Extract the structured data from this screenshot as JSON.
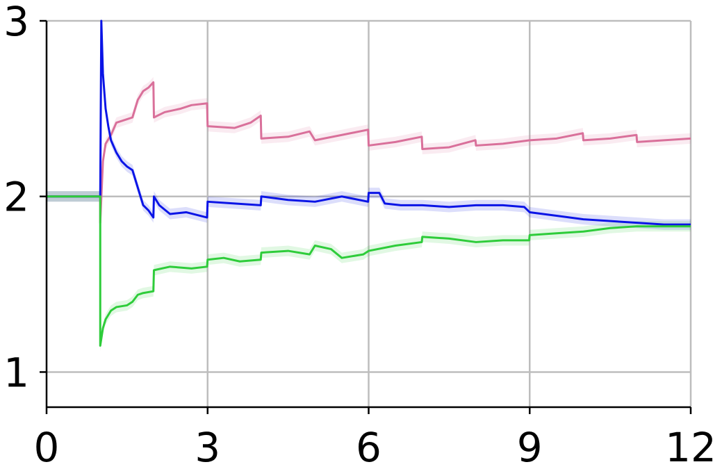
{
  "chart_data": {
    "type": "line",
    "title": "",
    "xlabel": "",
    "ylabel": "",
    "xlim": [
      0,
      12
    ],
    "ylim": [
      0.8,
      3.0
    ],
    "xticks": [
      0,
      3,
      6,
      9,
      12
    ],
    "yticks": [
      1,
      2,
      3
    ],
    "xtick_labels": [
      "0",
      "3",
      "6",
      "9",
      "12"
    ],
    "ytick_labels": [
      "1",
      "2",
      "3"
    ],
    "grid": true,
    "legend": "none",
    "series": [
      {
        "color": "#d9709a",
        "band_halfwidth": 0.03,
        "points": [
          [
            0,
            2.0
          ],
          [
            1.0,
            2.0
          ],
          [
            1.0,
            1.85
          ],
          [
            1.05,
            2.2
          ],
          [
            1.1,
            2.3
          ],
          [
            1.2,
            2.35
          ],
          [
            1.3,
            2.42
          ],
          [
            1.5,
            2.44
          ],
          [
            1.6,
            2.45
          ],
          [
            1.65,
            2.5
          ],
          [
            1.7,
            2.55
          ],
          [
            1.8,
            2.6
          ],
          [
            1.9,
            2.62
          ],
          [
            1.99,
            2.65
          ],
          [
            2.0,
            2.45
          ],
          [
            2.2,
            2.48
          ],
          [
            2.5,
            2.5
          ],
          [
            2.7,
            2.52
          ],
          [
            2.99,
            2.53
          ],
          [
            3.0,
            2.4
          ],
          [
            3.5,
            2.39
          ],
          [
            3.8,
            2.42
          ],
          [
            3.99,
            2.46
          ],
          [
            4.0,
            2.33
          ],
          [
            4.5,
            2.34
          ],
          [
            4.9,
            2.37
          ],
          [
            5.0,
            2.32
          ],
          [
            5.5,
            2.35
          ],
          [
            5.99,
            2.38
          ],
          [
            6.0,
            2.29
          ],
          [
            6.5,
            2.31
          ],
          [
            6.99,
            2.34
          ],
          [
            7.0,
            2.27
          ],
          [
            7.5,
            2.28
          ],
          [
            7.99,
            2.32
          ],
          [
            8.0,
            2.29
          ],
          [
            8.5,
            2.3
          ],
          [
            9.0,
            2.32
          ],
          [
            9.5,
            2.33
          ],
          [
            9.99,
            2.36
          ],
          [
            10.0,
            2.32
          ],
          [
            10.5,
            2.33
          ],
          [
            10.99,
            2.35
          ],
          [
            11.0,
            2.31
          ],
          [
            11.5,
            2.32
          ],
          [
            12.0,
            2.33
          ]
        ]
      },
      {
        "color": "#0a14e6",
        "band_halfwidth": 0.03,
        "points": [
          [
            0,
            2.0
          ],
          [
            1.0,
            2.0
          ],
          [
            1.02,
            3.0
          ],
          [
            1.05,
            2.7
          ],
          [
            1.1,
            2.5
          ],
          [
            1.15,
            2.4
          ],
          [
            1.2,
            2.32
          ],
          [
            1.3,
            2.25
          ],
          [
            1.4,
            2.2
          ],
          [
            1.5,
            2.17
          ],
          [
            1.6,
            2.15
          ],
          [
            1.7,
            2.05
          ],
          [
            1.8,
            1.95
          ],
          [
            1.9,
            1.92
          ],
          [
            1.99,
            1.88
          ],
          [
            2.0,
            2.0
          ],
          [
            2.1,
            1.95
          ],
          [
            2.3,
            1.9
          ],
          [
            2.6,
            1.91
          ],
          [
            2.99,
            1.88
          ],
          [
            3.0,
            1.97
          ],
          [
            3.5,
            1.96
          ],
          [
            3.99,
            1.95
          ],
          [
            4.0,
            2.0
          ],
          [
            4.5,
            1.98
          ],
          [
            5.0,
            1.97
          ],
          [
            5.5,
            2.0
          ],
          [
            5.99,
            1.97
          ],
          [
            6.0,
            2.02
          ],
          [
            6.2,
            2.02
          ],
          [
            6.3,
            1.96
          ],
          [
            6.6,
            1.95
          ],
          [
            7.0,
            1.95
          ],
          [
            7.5,
            1.94
          ],
          [
            8.0,
            1.95
          ],
          [
            8.5,
            1.95
          ],
          [
            8.9,
            1.94
          ],
          [
            9.0,
            1.91
          ],
          [
            9.5,
            1.89
          ],
          [
            10.0,
            1.87
          ],
          [
            10.5,
            1.86
          ],
          [
            11.0,
            1.85
          ],
          [
            11.5,
            1.84
          ],
          [
            12.0,
            1.84
          ]
        ]
      },
      {
        "color": "#2ecc3a",
        "band_halfwidth": 0.03,
        "points": [
          [
            0,
            2.0
          ],
          [
            1.0,
            2.0
          ],
          [
            1.0,
            1.15
          ],
          [
            1.05,
            1.25
          ],
          [
            1.1,
            1.3
          ],
          [
            1.2,
            1.35
          ],
          [
            1.3,
            1.37
          ],
          [
            1.5,
            1.38
          ],
          [
            1.6,
            1.4
          ],
          [
            1.7,
            1.44
          ],
          [
            1.8,
            1.45
          ],
          [
            1.99,
            1.46
          ],
          [
            2.0,
            1.58
          ],
          [
            2.3,
            1.6
          ],
          [
            2.7,
            1.59
          ],
          [
            2.99,
            1.6
          ],
          [
            3.0,
            1.64
          ],
          [
            3.3,
            1.65
          ],
          [
            3.6,
            1.63
          ],
          [
            3.99,
            1.64
          ],
          [
            4.0,
            1.68
          ],
          [
            4.5,
            1.69
          ],
          [
            4.9,
            1.67
          ],
          [
            5.0,
            1.72
          ],
          [
            5.3,
            1.7
          ],
          [
            5.5,
            1.65
          ],
          [
            5.9,
            1.67
          ],
          [
            6.0,
            1.69
          ],
          [
            6.5,
            1.72
          ],
          [
            6.99,
            1.74
          ],
          [
            7.0,
            1.77
          ],
          [
            7.5,
            1.76
          ],
          [
            8.0,
            1.74
          ],
          [
            8.5,
            1.75
          ],
          [
            8.99,
            1.75
          ],
          [
            9.0,
            1.78
          ],
          [
            9.5,
            1.79
          ],
          [
            10.0,
            1.8
          ],
          [
            10.5,
            1.82
          ],
          [
            11.0,
            1.83
          ],
          [
            11.5,
            1.83
          ],
          [
            12.0,
            1.83
          ]
        ]
      }
    ]
  }
}
